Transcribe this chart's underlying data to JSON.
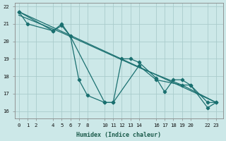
{
  "xlabel": "Humidex (Indice chaleur)",
  "background_color": "#cce8e8",
  "grid_color": "#aacccc",
  "line_color": "#1a7070",
  "xlim": [
    -0.5,
    23.8
  ],
  "ylim": [
    15.6,
    22.2
  ],
  "xticks": [
    0,
    1,
    2,
    4,
    5,
    6,
    7,
    8,
    10,
    11,
    12,
    13,
    14,
    16,
    17,
    18,
    19,
    20,
    22,
    23
  ],
  "yticks": [
    16,
    17,
    18,
    19,
    20,
    21,
    22
  ],
  "line1_x": [
    0,
    1,
    4,
    5,
    6,
    7,
    8,
    10,
    11,
    12,
    13,
    14,
    16,
    17,
    18,
    19,
    20,
    22,
    23
  ],
  "line1_y": [
    21.7,
    21.0,
    20.6,
    20.9,
    20.3,
    17.8,
    16.9,
    16.5,
    16.5,
    19.0,
    19.0,
    18.8,
    17.9,
    17.1,
    17.8,
    17.8,
    17.5,
    16.2,
    16.5
  ],
  "line2_x": [
    0,
    4,
    5,
    6,
    10,
    11,
    14,
    16,
    19,
    20,
    22,
    23
  ],
  "line2_y": [
    21.7,
    20.6,
    21.0,
    20.3,
    16.5,
    16.5,
    18.6,
    17.8,
    17.5,
    17.5,
    16.5,
    16.5
  ],
  "trend1_x": [
    0,
    23
  ],
  "trend1_y": [
    21.7,
    16.5
  ],
  "trend2_x": [
    0,
    5,
    14,
    19,
    23
  ],
  "trend2_y": [
    21.5,
    20.5,
    18.5,
    17.5,
    16.5
  ]
}
